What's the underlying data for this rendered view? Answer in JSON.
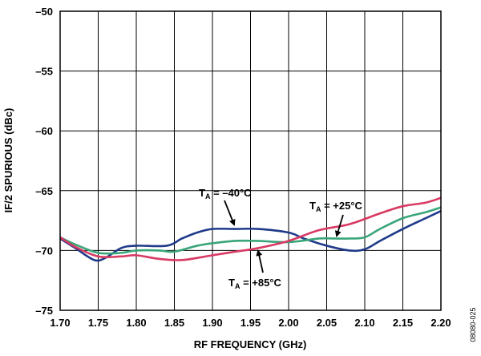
{
  "chart_data": {
    "type": "line",
    "xlabel": "RF FREQUENCY (GHz)",
    "ylabel": "IF/2 SPURIOUS (dBc)",
    "xlim": [
      1.7,
      2.2
    ],
    "ylim": [
      -75,
      -50
    ],
    "x_ticks": [
      1.7,
      1.75,
      1.8,
      1.85,
      1.9,
      1.95,
      2.0,
      2.05,
      2.1,
      2.15,
      2.2
    ],
    "x_tick_labels": [
      "1.70",
      "1.75",
      "1.80",
      "1.85",
      "1.90",
      "1.95",
      "2.00",
      "2.05",
      "2.10",
      "2.15",
      "2.20"
    ],
    "y_ticks": [
      -50,
      -55,
      -60,
      -65,
      -70,
      -75
    ],
    "y_tick_labels": [
      "–50",
      "–55",
      "–60",
      "–65",
      "–70",
      "–75"
    ],
    "grid": true,
    "legend": "none",
    "series": [
      {
        "name": "TA = –40°C",
        "color": "#1f3a8a",
        "x": [
          1.7,
          1.72,
          1.745,
          1.76,
          1.78,
          1.8,
          1.84,
          1.86,
          1.88,
          1.9,
          1.93,
          1.96,
          2.0,
          2.02,
          2.05,
          2.08,
          2.1,
          2.12,
          2.15,
          2.18,
          2.2
        ],
        "y": [
          -69.0,
          -69.8,
          -70.8,
          -70.6,
          -69.8,
          -69.6,
          -69.6,
          -69.0,
          -68.5,
          -68.2,
          -68.2,
          -68.2,
          -68.5,
          -69.0,
          -69.6,
          -70.0,
          -69.9,
          -69.2,
          -68.2,
          -67.3,
          -66.7
        ]
      },
      {
        "name": "TA = +25°C",
        "color": "#3aa57a",
        "x": [
          1.7,
          1.72,
          1.75,
          1.78,
          1.8,
          1.83,
          1.85,
          1.88,
          1.9,
          1.93,
          1.96,
          2.0,
          2.04,
          2.06,
          2.08,
          2.1,
          2.12,
          2.15,
          2.18,
          2.2
        ],
        "y": [
          -68.9,
          -69.5,
          -70.2,
          -70.2,
          -70.0,
          -70.0,
          -70.1,
          -69.6,
          -69.4,
          -69.2,
          -69.2,
          -69.3,
          -69.0,
          -69.0,
          -69.0,
          -68.9,
          -68.2,
          -67.3,
          -66.8,
          -66.4
        ]
      },
      {
        "name": "TA = +85°C",
        "color": "#d83a63",
        "x": [
          1.7,
          1.72,
          1.75,
          1.78,
          1.8,
          1.83,
          1.86,
          1.9,
          1.93,
          1.96,
          2.0,
          2.04,
          2.08,
          2.12,
          2.15,
          2.18,
          2.2
        ],
        "y": [
          -68.9,
          -69.7,
          -70.5,
          -70.5,
          -70.4,
          -70.7,
          -70.8,
          -70.4,
          -70.1,
          -69.8,
          -69.2,
          -68.3,
          -67.8,
          -66.9,
          -66.3,
          -66.0,
          -65.6
        ]
      }
    ],
    "annotations": [
      {
        "main": "T",
        "sub": "A",
        "rest": " = –40°C"
      },
      {
        "main": "T",
        "sub": "A",
        "rest": " = +25°C"
      },
      {
        "main": "T",
        "sub": "A",
        "rest": " = +85°C"
      }
    ],
    "figure_id": "08080-025"
  }
}
